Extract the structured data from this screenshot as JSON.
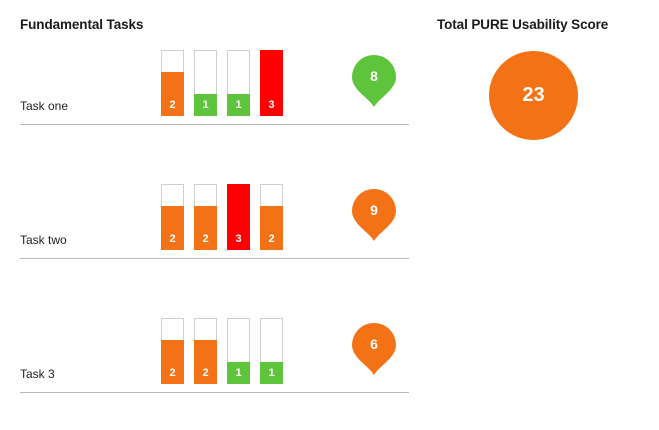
{
  "header": {
    "section_title": "Fundamental Tasks",
    "total_title": "Total PURE Usability Score"
  },
  "total": {
    "score": "23",
    "color": "#f47216"
  },
  "colors": {
    "orange": "#f47216",
    "green": "#5dc43c",
    "red": "#ff0000"
  },
  "tasks": [
    {
      "label": "Task one",
      "score": "8",
      "score_color": "#5dc43c",
      "steps": [
        {
          "value": "2",
          "color": "#f47216"
        },
        {
          "value": "1",
          "color": "#5dc43c"
        },
        {
          "value": "1",
          "color": "#5dc43c"
        },
        {
          "value": "3",
          "color": "#ff0000"
        }
      ]
    },
    {
      "label": "Task two",
      "score": "9",
      "score_color": "#f47216",
      "steps": [
        {
          "value": "2",
          "color": "#f47216"
        },
        {
          "value": "2",
          "color": "#f47216"
        },
        {
          "value": "3",
          "color": "#ff0000"
        },
        {
          "value": "2",
          "color": "#f47216"
        }
      ]
    },
    {
      "label": "Task 3",
      "score": "6",
      "score_color": "#f47216",
      "steps": [
        {
          "value": "2",
          "color": "#f47216"
        },
        {
          "value": "2",
          "color": "#f47216"
        },
        {
          "value": "1",
          "color": "#5dc43c"
        },
        {
          "value": "1",
          "color": "#5dc43c"
        }
      ]
    }
  ]
}
